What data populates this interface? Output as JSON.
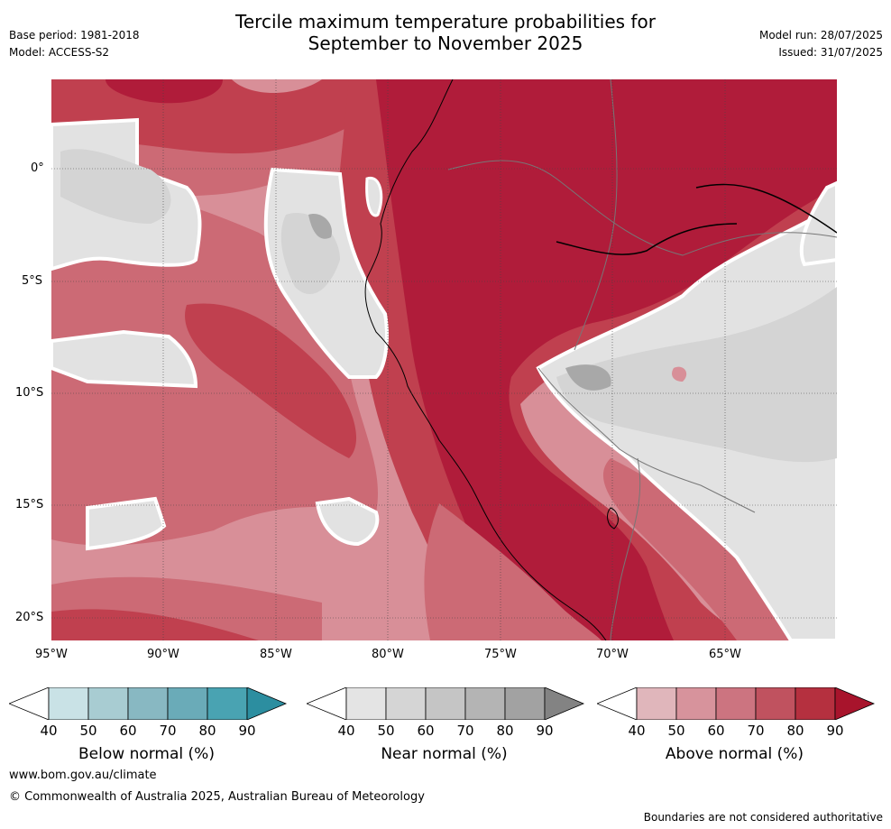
{
  "header": {
    "title_line1": "Tercile maximum temperature probabilities for",
    "title_line2": "September to November 2025",
    "base_period": "Base period: 1981-2018",
    "model": "Model: ACCESS-S2",
    "model_run": "Model run: 28/07/2025",
    "issued": "Issued: 31/07/2025"
  },
  "map": {
    "lon_ticks": [
      "95°W",
      "90°W",
      "85°W",
      "80°W",
      "75°W",
      "70°W",
      "65°W"
    ],
    "lat_ticks": [
      "0°",
      "5°S",
      "10°S",
      "15°S",
      "20°S"
    ]
  },
  "colorbars": [
    {
      "name": "below",
      "label": "Below normal (%)",
      "ticks": [
        "40",
        "50",
        "60",
        "70",
        "80",
        "90"
      ],
      "colors": [
        "#ffffff",
        "#c9e2e6",
        "#a8ccd2",
        "#88b8c2",
        "#6aabb8",
        "#49a3b2",
        "#2c8ea0"
      ]
    },
    {
      "name": "near",
      "label": "Near normal (%)",
      "ticks": [
        "40",
        "50",
        "60",
        "70",
        "80",
        "90"
      ],
      "colors": [
        "#ffffff",
        "#e4e4e4",
        "#d5d5d5",
        "#c5c5c5",
        "#b4b4b4",
        "#a2a2a2",
        "#838383"
      ]
    },
    {
      "name": "above",
      "label": "Above normal (%)",
      "ticks": [
        "40",
        "50",
        "60",
        "70",
        "80",
        "90"
      ],
      "colors": [
        "#ffffff",
        "#e0b6bb",
        "#d7939c",
        "#cc7480",
        "#c0525f",
        "#b5303f",
        "#a8142c"
      ]
    }
  ],
  "footer": {
    "url": "www.bom.gov.au/climate",
    "copyright": "© Commonwealth of Australia 2025, Australian Bureau of Meteorology",
    "disclaimer": "Boundaries are not considered authoritative"
  },
  "colors": {
    "above_90": "#b01c3a",
    "above_80": "#c0404f",
    "above_70": "#cc6a75",
    "above_60": "#d88f98",
    "above_50": "#e3b0b6",
    "near_50": "#e2e2e2",
    "near_60": "#d4d4d4",
    "near_70": "#c2c2c2",
    "near_80": "#a8a8a8"
  }
}
